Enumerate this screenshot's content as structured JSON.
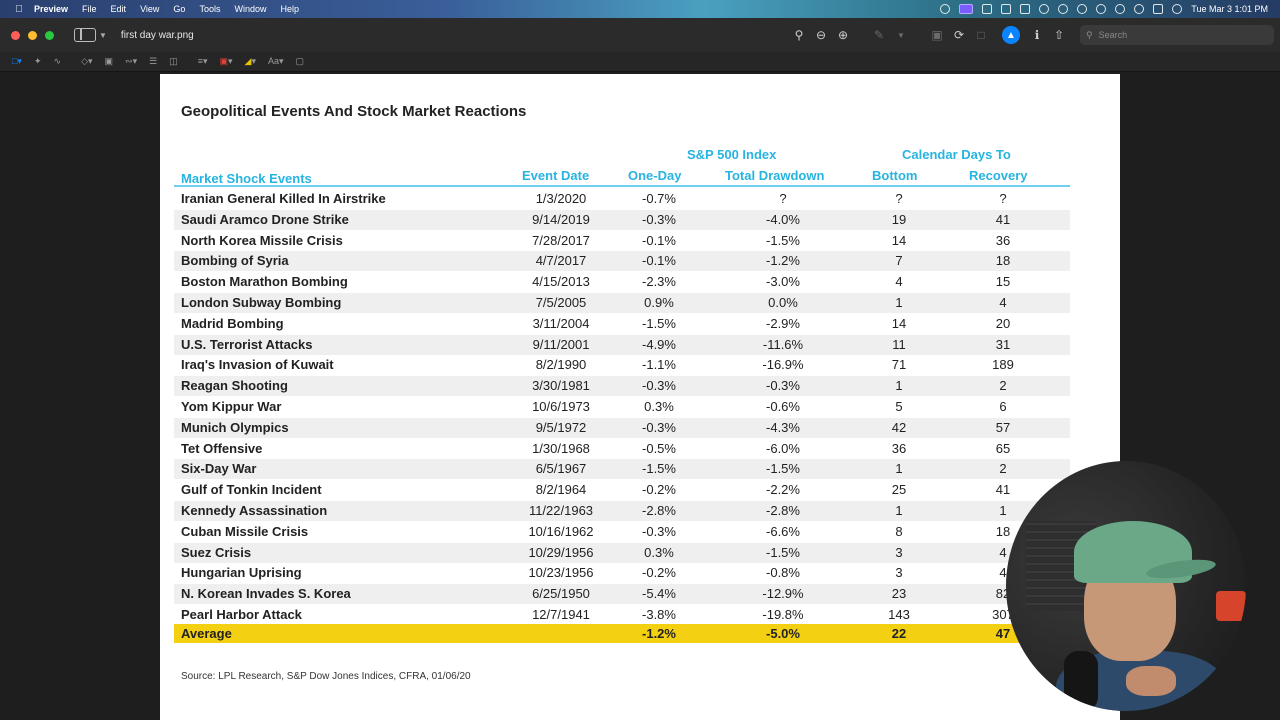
{
  "menubar": {
    "app_name": "Preview",
    "menus": [
      "File",
      "Edit",
      "View",
      "Go",
      "Tools",
      "Window",
      "Help"
    ],
    "clock": "Tue Mar 3  1:01 PM"
  },
  "window": {
    "title": "first day war.png",
    "search_placeholder": "Search"
  },
  "document": {
    "title": "Geopolitical Events And Stock Market Reactions",
    "headers": {
      "group_index": "S&P 500 Index",
      "group_days": "Calendar Days To",
      "event": "Market Shock Events",
      "date": "Event Date",
      "one_day": "One-Day",
      "drawdown": "Total Drawdown",
      "bottom": "Bottom",
      "recovery": "Recovery"
    },
    "rows": [
      {
        "event": "Iranian General Killed In Airstrike",
        "date": "1/3/2020",
        "one_day": "-0.7%",
        "drawdown": "?",
        "bottom": "?",
        "recovery": "?"
      },
      {
        "event": "Saudi Aramco Drone Strike",
        "date": "9/14/2019",
        "one_day": "-0.3%",
        "drawdown": "-4.0%",
        "bottom": "19",
        "recovery": "41"
      },
      {
        "event": "North Korea Missile Crisis",
        "date": "7/28/2017",
        "one_day": "-0.1%",
        "drawdown": "-1.5%",
        "bottom": "14",
        "recovery": "36"
      },
      {
        "event": "Bombing of Syria",
        "date": "4/7/2017",
        "one_day": "-0.1%",
        "drawdown": "-1.2%",
        "bottom": "7",
        "recovery": "18"
      },
      {
        "event": "Boston Marathon Bombing",
        "date": "4/15/2013",
        "one_day": "-2.3%",
        "drawdown": "-3.0%",
        "bottom": "4",
        "recovery": "15"
      },
      {
        "event": "London Subway Bombing",
        "date": "7/5/2005",
        "one_day": "0.9%",
        "drawdown": "0.0%",
        "bottom": "1",
        "recovery": "4"
      },
      {
        "event": "Madrid Bombing",
        "date": "3/11/2004",
        "one_day": "-1.5%",
        "drawdown": "-2.9%",
        "bottom": "14",
        "recovery": "20"
      },
      {
        "event": "U.S. Terrorist Attacks",
        "date": "9/11/2001",
        "one_day": "-4.9%",
        "drawdown": "-11.6%",
        "bottom": "11",
        "recovery": "31"
      },
      {
        "event": "Iraq's Invasion of Kuwait",
        "date": "8/2/1990",
        "one_day": "-1.1%",
        "drawdown": "-16.9%",
        "bottom": "71",
        "recovery": "189"
      },
      {
        "event": "Reagan Shooting",
        "date": "3/30/1981",
        "one_day": "-0.3%",
        "drawdown": "-0.3%",
        "bottom": "1",
        "recovery": "2"
      },
      {
        "event": "Yom Kippur War",
        "date": "10/6/1973",
        "one_day": "0.3%",
        "drawdown": "-0.6%",
        "bottom": "5",
        "recovery": "6"
      },
      {
        "event": "Munich Olympics",
        "date": "9/5/1972",
        "one_day": "-0.3%",
        "drawdown": "-4.3%",
        "bottom": "42",
        "recovery": "57"
      },
      {
        "event": "Tet Offensive",
        "date": "1/30/1968",
        "one_day": "-0.5%",
        "drawdown": "-6.0%",
        "bottom": "36",
        "recovery": "65"
      },
      {
        "event": "Six-Day War",
        "date": "6/5/1967",
        "one_day": "-1.5%",
        "drawdown": "-1.5%",
        "bottom": "1",
        "recovery": "2"
      },
      {
        "event": "Gulf of Tonkin Incident",
        "date": "8/2/1964",
        "one_day": "-0.2%",
        "drawdown": "-2.2%",
        "bottom": "25",
        "recovery": "41"
      },
      {
        "event": "Kennedy Assassination",
        "date": "11/22/1963",
        "one_day": "-2.8%",
        "drawdown": "-2.8%",
        "bottom": "1",
        "recovery": "1"
      },
      {
        "event": "Cuban Missile Crisis",
        "date": "10/16/1962",
        "one_day": "-0.3%",
        "drawdown": "-6.6%",
        "bottom": "8",
        "recovery": "18"
      },
      {
        "event": "Suez Crisis",
        "date": "10/29/1956",
        "one_day": "0.3%",
        "drawdown": "-1.5%",
        "bottom": "3",
        "recovery": "4"
      },
      {
        "event": "Hungarian Uprising",
        "date": "10/23/1956",
        "one_day": "-0.2%",
        "drawdown": "-0.8%",
        "bottom": "3",
        "recovery": "4"
      },
      {
        "event": "N. Korean Invades S. Korea",
        "date": "6/25/1950",
        "one_day": "-5.4%",
        "drawdown": "-12.9%",
        "bottom": "23",
        "recovery": "82"
      },
      {
        "event": "Pearl Harbor Attack",
        "date": "12/7/1941",
        "one_day": "-3.8%",
        "drawdown": "-19.8%",
        "bottom": "143",
        "recovery": "307"
      }
    ],
    "average": {
      "label": "Average",
      "one_day": "-1.2%",
      "drawdown": "-5.0%",
      "bottom": "22",
      "recovery": "47"
    },
    "source": "Source: LPL Research, S&P Dow Jones Indices, CFRA, 01/06/20"
  },
  "colors": {
    "header_blue": "#27b4e0",
    "average_yellow": "#f4d012",
    "accent": "#0a84ff"
  }
}
